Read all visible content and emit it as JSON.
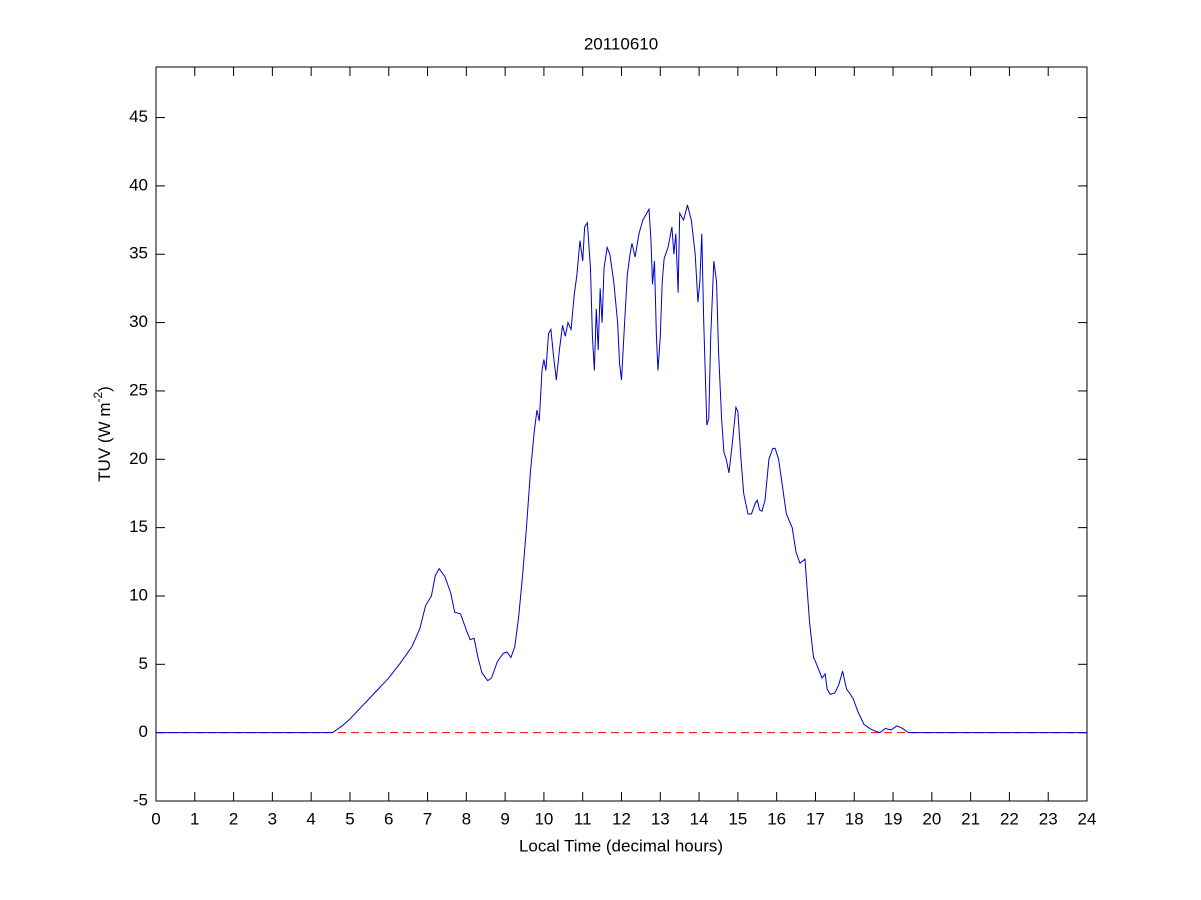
{
  "chart_data": {
    "type": "line",
    "title": "20110610",
    "x_label": "Local Time (decimal hours)",
    "y_label": {
      "text": "TUV (W m",
      "exponent": "-2",
      "close": ")"
    },
    "xlim": [
      0,
      24
    ],
    "xticks": [
      0,
      1,
      2,
      3,
      4,
      5,
      6,
      7,
      8,
      9,
      10,
      11,
      12,
      13,
      14,
      15,
      16,
      17,
      18,
      19,
      20,
      21,
      22,
      23,
      24
    ],
    "ylim": [
      -5,
      48.7
    ],
    "yticks": [
      -5,
      0,
      5,
      10,
      15,
      20,
      25,
      30,
      35,
      40,
      45
    ],
    "grid": false,
    "reference_line": {
      "value": 0,
      "color": "#ff0000",
      "style": "dashed"
    },
    "series": [
      {
        "color": "#0000cc",
        "x": [
          0,
          4.55,
          4.8,
          5.0,
          5.3,
          5.6,
          6.0,
          6.3,
          6.6,
          6.8,
          6.95,
          7.1,
          7.2,
          7.3,
          7.45,
          7.6,
          7.7,
          7.85,
          8.0,
          8.1,
          8.2,
          8.3,
          8.4,
          8.55,
          8.65,
          8.8,
          8.95,
          9.05,
          9.15,
          9.25,
          9.35,
          9.45,
          9.55,
          9.65,
          9.75,
          9.82,
          9.88,
          9.95,
          10.0,
          10.05,
          10.12,
          10.18,
          10.25,
          10.32,
          10.4,
          10.48,
          10.55,
          10.62,
          10.7,
          10.78,
          10.85,
          10.93,
          11.0,
          11.05,
          11.12,
          11.2,
          11.25,
          11.3,
          11.35,
          11.4,
          11.45,
          11.5,
          11.55,
          11.63,
          11.7,
          11.8,
          11.9,
          11.95,
          12.0,
          12.08,
          12.15,
          12.22,
          12.27,
          12.35,
          12.45,
          12.55,
          12.65,
          12.71,
          12.76,
          12.8,
          12.85,
          12.9,
          12.94,
          13.0,
          13.05,
          13.1,
          13.2,
          13.3,
          13.35,
          13.4,
          13.46,
          13.5,
          13.6,
          13.7,
          13.8,
          13.9,
          13.97,
          14.02,
          14.07,
          14.12,
          14.2,
          14.25,
          14.3,
          14.38,
          14.45,
          14.5,
          14.58,
          14.64,
          14.7,
          14.77,
          14.85,
          14.95,
          15.0,
          15.08,
          15.15,
          15.26,
          15.35,
          15.45,
          15.5,
          15.56,
          15.62,
          15.7,
          15.8,
          15.9,
          15.96,
          16.05,
          16.15,
          16.25,
          16.4,
          16.5,
          16.6,
          16.73,
          16.85,
          16.95,
          17.0,
          17.1,
          17.17,
          17.25,
          17.3,
          17.38,
          17.5,
          17.6,
          17.7,
          17.8,
          17.9,
          17.97,
          18.1,
          18.25,
          18.4,
          18.55,
          18.66,
          18.8,
          18.95,
          19.1,
          19.25,
          19.4,
          24
        ],
        "values": [
          0,
          0,
          0.5,
          1.0,
          1.9,
          2.8,
          4.0,
          5.1,
          6.3,
          7.6,
          9.3,
          10.0,
          11.5,
          12.0,
          11.4,
          10.2,
          8.8,
          8.7,
          7.5,
          6.8,
          6.9,
          5.5,
          4.4,
          3.8,
          4.0,
          5.2,
          5.8,
          5.9,
          5.5,
          6.3,
          8.5,
          11.5,
          15,
          19,
          22,
          23.6,
          22.8,
          26.5,
          27.3,
          26.5,
          29.2,
          29.5,
          27.5,
          25.8,
          28,
          29.8,
          29,
          30,
          29.5,
          32,
          33.5,
          36,
          34.5,
          37,
          37.3,
          34,
          29,
          26.5,
          31,
          28,
          32.5,
          30,
          34,
          35.5,
          35,
          33,
          30,
          27,
          25.8,
          30,
          33.5,
          35,
          35.8,
          34.8,
          36.5,
          37.5,
          38,
          38.3,
          36,
          32.8,
          34.5,
          29,
          26.5,
          29,
          33,
          34.7,
          35.5,
          37,
          35,
          36.5,
          32.2,
          38,
          37.5,
          38.6,
          37.5,
          35,
          31.5,
          33,
          36.5,
          30,
          22.5,
          23,
          29,
          34.5,
          33,
          28,
          23,
          20.5,
          20,
          19,
          21,
          23.8,
          23.5,
          20,
          17.5,
          16,
          16,
          16.8,
          17,
          16.3,
          16.2,
          17,
          20,
          20.8,
          20.8,
          20,
          18,
          16,
          15,
          13.2,
          12.4,
          12.7,
          8,
          5.5,
          5.2,
          4.5,
          4.0,
          4.3,
          3.2,
          2.8,
          2.9,
          3.5,
          4.5,
          3.2,
          2.8,
          2.5,
          1.5,
          0.6,
          0.3,
          0.1,
          0,
          0.3,
          0.2,
          0.5,
          0.3,
          0,
          0
        ]
      }
    ]
  }
}
